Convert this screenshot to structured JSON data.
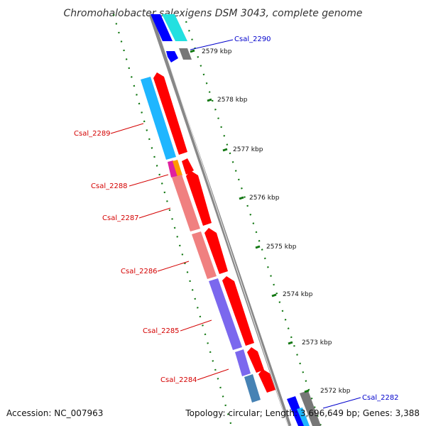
{
  "title": "Chromohalobacter salexigens DSM 3043, complete genome",
  "footer": {
    "accession": "Accession: NC_007963",
    "summary": "Topology: circular; Length: 3,696,649 bp; Genes: 3,388"
  },
  "scale_labels": [
    "2579 kbp",
    "2578 kbp",
    "2577 kbp",
    "2576 kbp",
    "2575 kbp",
    "2574 kbp",
    "2573 kbp",
    "2572 kbp"
  ],
  "gene_labels": [
    "Csal_2290",
    "Csal_2289",
    "Csal_2288",
    "Csal_2287",
    "Csal_2286",
    "Csal_2285",
    "Csal_2284",
    "Csal_2282"
  ],
  "colors": {
    "cds_forward": "#ff0000",
    "cyan": "#1fb6ff",
    "light_cyan": "#22e0e0",
    "salmon": "#f08080",
    "slate": "#7b68ee",
    "steel": "#4682b4",
    "magenta": "#e020a0",
    "orange": "#ff9900",
    "blue": "#0000ff",
    "gray": "#777777",
    "backbone": "#888888",
    "dotted_ring": "#117711",
    "label_red": "#d40000",
    "label_blue": "#0000cc"
  }
}
